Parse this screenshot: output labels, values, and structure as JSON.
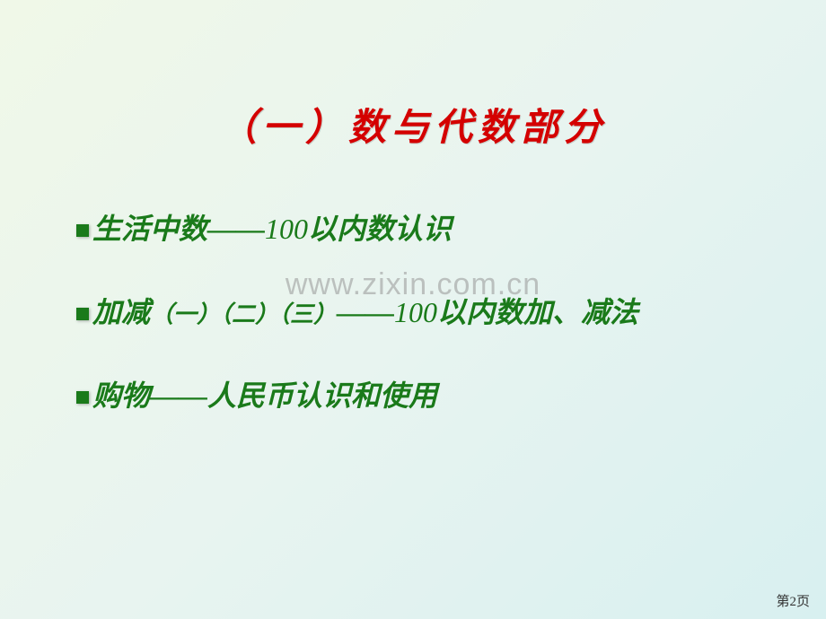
{
  "title": "（一）数与代数部分",
  "lines": {
    "l1_a": "生活中数——",
    "l1_b": "100",
    "l1_c": "以内数认识",
    "l2_a": "加减",
    "l2_b": "（一）（二）（三）",
    "l2_c": "——",
    "l2_d": "100",
    "l2_e": "以内数加、减法",
    "l3": "购物——人民币认识和使用"
  },
  "watermark": "www.zixin.com.cn",
  "pageNum": "第2页",
  "colors": {
    "title": "#d40000",
    "body": "#1a7a1a",
    "watermark": "rgba(150,150,150,0.55)",
    "bg_from": "#f0f8e8",
    "bg_to": "#d8f0f0"
  },
  "font": {
    "title_size": 42,
    "body_size": 32,
    "paren_size": 26,
    "family": "KaiTi"
  }
}
